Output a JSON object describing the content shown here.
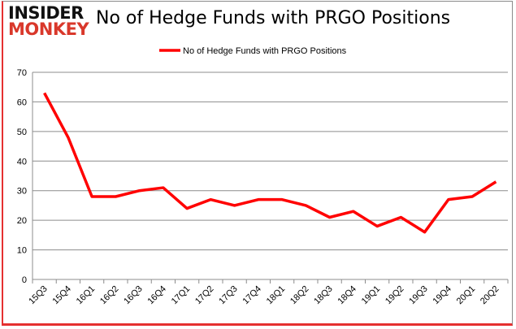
{
  "logo": {
    "line1": "INSIDER",
    "line2": "MONKEY"
  },
  "chart_data": {
    "type": "line",
    "title": "No of Hedge Funds with PRGO Positions",
    "xlabel": "",
    "ylabel": "",
    "categories": [
      "15Q3",
      "15Q4",
      "16Q1",
      "16Q2",
      "16Q3",
      "16Q4",
      "17Q1",
      "17Q2",
      "17Q3",
      "17Q4",
      "18Q1",
      "18Q2",
      "18Q3",
      "18Q4",
      "19Q1",
      "19Q2",
      "19Q3",
      "19Q4",
      "20Q1",
      "20Q2"
    ],
    "series": [
      {
        "name": "No of Hedge Funds with PRGO Positions",
        "color": "#ff0000",
        "values": [
          63,
          48,
          28,
          28,
          30,
          31,
          24,
          27,
          25,
          27,
          27,
          25,
          21,
          23,
          18,
          21,
          16,
          27,
          28,
          33
        ]
      }
    ],
    "ylim": [
      0,
      70
    ],
    "yticks": [
      0,
      10,
      20,
      30,
      40,
      50,
      60,
      70
    ],
    "grid": true,
    "legend": "top-center"
  }
}
